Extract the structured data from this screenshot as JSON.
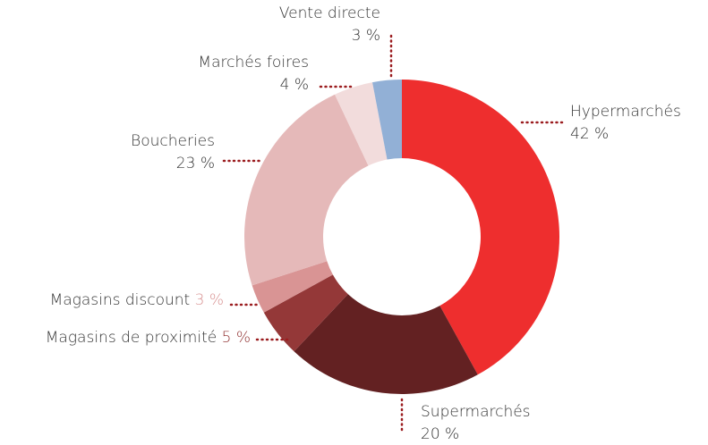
{
  "chart_data": {
    "type": "donut",
    "categories": [
      "Hypermarchés",
      "Supermarchés",
      "Magasins de proximité",
      "Magasins discount",
      "Boucheries",
      "Marchés foires",
      "Vente directe"
    ],
    "values": [
      42,
      20,
      5,
      3,
      23,
      4,
      3
    ],
    "value_labels": [
      "42 %",
      "20 %",
      "5 %",
      "3 %",
      "23 %",
      "4 %",
      "3 %"
    ],
    "colors": [
      "#ee2e2e",
      "#632122",
      "#943838",
      "#d99494",
      "#e5b9b9",
      "#f2dcdc",
      "#92b0d6"
    ]
  }
}
